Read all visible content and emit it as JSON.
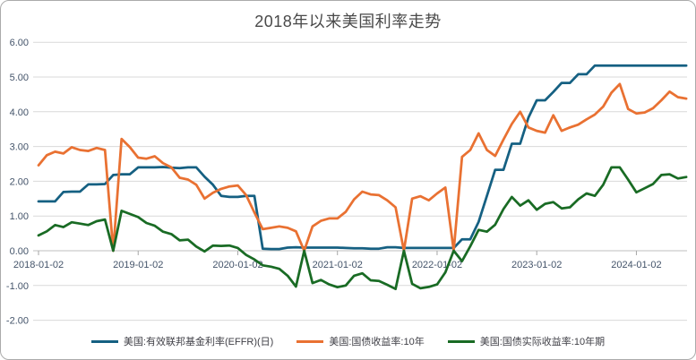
{
  "title": "2018年以来美国利率走势",
  "chart_data": {
    "type": "line",
    "title": "2018年以来美国利率走势",
    "xlabel": "",
    "ylabel": "",
    "ylim": [
      -2,
      6
    ],
    "y_tick_labels": [
      "6.00",
      "5.00",
      "4.00",
      "3.00",
      "2.00",
      "1.00",
      "0.00",
      "-1.00",
      "-2.00"
    ],
    "y_tick_values": [
      6,
      5,
      4,
      3,
      2,
      1,
      0,
      -1,
      -2
    ],
    "x_tick_labels": [
      "2018-01-02",
      "2019-01-02",
      "2020-01-02",
      "2021-01-02",
      "2022-01-02",
      "2023-01-02",
      "2024-01-02"
    ],
    "x_tick_indices": [
      0,
      12,
      24,
      36,
      48,
      60,
      72
    ],
    "grid": "horizontal",
    "legend_position": "bottom",
    "note_glitches": "series 2 and 3 drop to 0.00 at 2018-10, 2020-09, 2021-09, 2022-03 (missing data plotted as zero)",
    "x": [
      "2018-01",
      "2018-02",
      "2018-03",
      "2018-04",
      "2018-05",
      "2018-06",
      "2018-07",
      "2018-08",
      "2018-09",
      "2018-10",
      "2018-11",
      "2018-12",
      "2019-01",
      "2019-02",
      "2019-03",
      "2019-04",
      "2019-05",
      "2019-06",
      "2019-07",
      "2019-08",
      "2019-09",
      "2019-10",
      "2019-11",
      "2019-12",
      "2020-01",
      "2020-02",
      "2020-03",
      "2020-04",
      "2020-05",
      "2020-06",
      "2020-07",
      "2020-08",
      "2020-09",
      "2020-10",
      "2020-11",
      "2020-12",
      "2021-01",
      "2021-02",
      "2021-03",
      "2021-04",
      "2021-05",
      "2021-06",
      "2021-07",
      "2021-08",
      "2021-09",
      "2021-10",
      "2021-11",
      "2021-12",
      "2022-01",
      "2022-02",
      "2022-03",
      "2022-04",
      "2022-05",
      "2022-06",
      "2022-07",
      "2022-08",
      "2022-09",
      "2022-10",
      "2022-11",
      "2022-12",
      "2023-01",
      "2023-02",
      "2023-03",
      "2023-04",
      "2023-05",
      "2023-06",
      "2023-07",
      "2023-08",
      "2023-09",
      "2023-10",
      "2023-11",
      "2023-12",
      "2024-01",
      "2024-02",
      "2024-03",
      "2024-04",
      "2024-05",
      "2024-06",
      "2024-07"
    ],
    "series": [
      {
        "name": "美国:有效联邦基金利率(EFFR)(日)",
        "color": "#156082",
        "values": [
          1.42,
          1.42,
          1.42,
          1.69,
          1.7,
          1.7,
          1.91,
          1.91,
          1.92,
          2.18,
          2.2,
          2.2,
          2.4,
          2.4,
          2.4,
          2.41,
          2.39,
          2.38,
          2.4,
          2.4,
          2.13,
          1.9,
          1.58,
          1.55,
          1.55,
          1.58,
          1.58,
          0.06,
          0.05,
          0.05,
          0.09,
          0.1,
          0.09,
          0.09,
          0.09,
          0.09,
          0.09,
          0.08,
          0.07,
          0.07,
          0.06,
          0.06,
          0.1,
          0.1,
          0.08,
          0.08,
          0.08,
          0.08,
          0.08,
          0.08,
          0.08,
          0.33,
          0.33,
          0.83,
          1.58,
          2.33,
          2.33,
          3.08,
          3.08,
          3.83,
          4.33,
          4.33,
          4.57,
          4.83,
          4.83,
          5.08,
          5.08,
          5.33,
          5.33,
          5.33,
          5.33,
          5.33,
          5.33,
          5.33,
          5.33,
          5.33,
          5.33,
          5.33,
          5.33
        ]
      },
      {
        "name": "美国:国债收益率:10年",
        "color": "#E97132",
        "values": [
          2.46,
          2.75,
          2.85,
          2.8,
          2.98,
          2.9,
          2.87,
          2.96,
          2.9,
          0.0,
          3.22,
          2.98,
          2.68,
          2.65,
          2.72,
          2.52,
          2.4,
          2.1,
          2.05,
          1.9,
          1.5,
          1.67,
          1.78,
          1.85,
          1.88,
          1.6,
          1.1,
          0.62,
          0.66,
          0.7,
          0.66,
          0.56,
          0.0,
          0.7,
          0.86,
          0.93,
          0.93,
          1.12,
          1.48,
          1.7,
          1.62,
          1.6,
          1.45,
          1.25,
          0.0,
          1.5,
          1.57,
          1.45,
          1.65,
          1.82,
          0.0,
          2.7,
          2.9,
          3.38,
          2.9,
          2.73,
          3.2,
          3.65,
          4.0,
          3.55,
          3.45,
          3.4,
          3.9,
          3.45,
          3.55,
          3.63,
          3.78,
          3.92,
          4.15,
          4.55,
          4.8,
          4.08,
          3.95,
          3.98,
          4.1,
          4.33,
          4.58,
          4.42,
          4.38
        ]
      },
      {
        "name": "美国:国债实际收益率:10年期",
        "color": "#196B24",
        "values": [
          0.44,
          0.56,
          0.74,
          0.68,
          0.82,
          0.78,
          0.74,
          0.85,
          0.9,
          0.0,
          1.15,
          1.06,
          0.97,
          0.8,
          0.72,
          0.55,
          0.48,
          0.3,
          0.32,
          0.12,
          -0.02,
          0.15,
          0.14,
          0.15,
          0.08,
          -0.12,
          -0.25,
          -0.42,
          -0.46,
          -0.52,
          -0.72,
          -1.03,
          0.0,
          -0.93,
          -0.84,
          -0.97,
          -1.05,
          -1.0,
          -0.72,
          -0.65,
          -0.85,
          -0.87,
          -0.98,
          -1.1,
          0.0,
          -0.95,
          -1.08,
          -1.04,
          -0.97,
          -0.62,
          0.0,
          -0.3,
          0.13,
          0.6,
          0.55,
          0.75,
          1.2,
          1.55,
          1.3,
          1.45,
          1.18,
          1.35,
          1.4,
          1.22,
          1.25,
          1.48,
          1.65,
          1.58,
          1.9,
          2.4,
          2.4,
          2.05,
          1.68,
          1.8,
          1.92,
          2.18,
          2.2,
          2.08,
          2.12
        ]
      }
    ]
  }
}
